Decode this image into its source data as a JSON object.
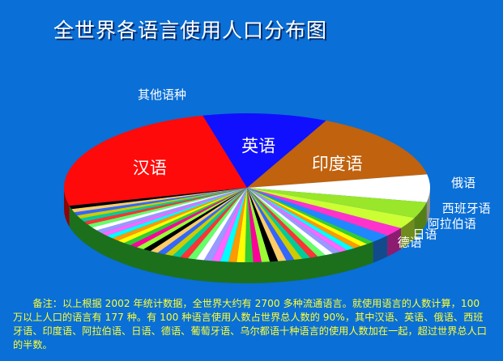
{
  "chart_data": {
    "type": "pie",
    "title": "全世界各语言使用人口分布图",
    "three_d": true,
    "slices": [
      {
        "name": "汉语",
        "value": 25,
        "color": "#ff0a0a",
        "label_style": "big"
      },
      {
        "name": "英语",
        "value": 11,
        "color": "#1010ff",
        "label_style": "big"
      },
      {
        "name": "印度语",
        "value": 15,
        "color": "#c0620e",
        "label_style": "big"
      },
      {
        "name": "俄语",
        "value": 6,
        "color": "#ffffff",
        "label_style": "outside"
      },
      {
        "name": "西班牙语",
        "value": 3.5,
        "color": "#99e62a",
        "label_style": "outside"
      },
      {
        "name": "阿拉伯语",
        "value": 2.5,
        "color": "#ccff33",
        "label_style": "outside"
      },
      {
        "name": "日语",
        "value": 2,
        "color": "#ff33cc",
        "label_style": "outside"
      },
      {
        "name": "德语",
        "value": 1.8,
        "color": "#1f88ff",
        "label_style": "outside"
      },
      {
        "name": "其他语种",
        "value": 33.2,
        "color": "#33cc33",
        "label_style": "other"
      }
    ],
    "legend": "none",
    "note": "备注：以上根据 2002 年统计数据，全世界大约有 2700 多种流通语言。就使用语言的人数计算，100 万以上人口的语言有 177 种。有 100 种语言使用人数占世界总人数的 90%，其中汉语、英语、俄语、西班牙语、印度语、阿拉伯语、日语、德语、葡萄牙语、乌尔都语十种语言的使用人数加在一起，超过世界总人口的半数。"
  },
  "colors": {
    "background": "#0a6fd6",
    "note_text": "#ffff33",
    "other_stripes": [
      "#33cc33",
      "#ffff00",
      "#ff9900",
      "#00ffff",
      "#ff66ff",
      "#9999ff",
      "#ffffff",
      "#66ff66",
      "#ff3333",
      "#00cc99",
      "#cccc00",
      "#3366ff",
      "#ffcc66",
      "#000000",
      "#99ff33",
      "#ff0099"
    ]
  }
}
